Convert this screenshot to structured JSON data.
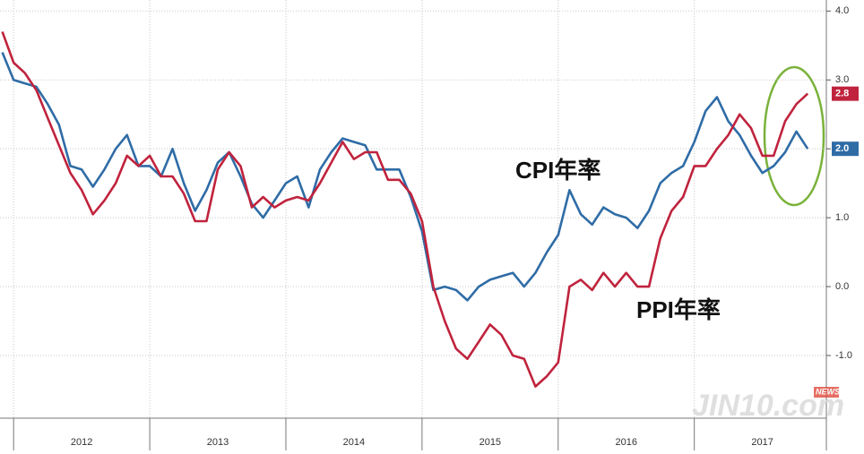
{
  "chart_data": {
    "type": "line",
    "x": [
      2011.917,
      2012.0,
      2012.083,
      2012.167,
      2012.25,
      2012.333,
      2012.417,
      2012.5,
      2012.583,
      2012.667,
      2012.75,
      2012.833,
      2012.917,
      2013.0,
      2013.083,
      2013.167,
      2013.25,
      2013.333,
      2013.417,
      2013.5,
      2013.583,
      2013.667,
      2013.75,
      2013.833,
      2013.917,
      2014.0,
      2014.083,
      2014.167,
      2014.25,
      2014.333,
      2014.417,
      2014.5,
      2014.583,
      2014.667,
      2014.75,
      2014.833,
      2014.917,
      2015.0,
      2015.083,
      2015.167,
      2015.25,
      2015.333,
      2015.417,
      2015.5,
      2015.583,
      2015.667,
      2015.75,
      2015.833,
      2015.917,
      2016.0,
      2016.083,
      2016.167,
      2016.25,
      2016.333,
      2016.417,
      2016.5,
      2016.583,
      2016.667,
      2016.75,
      2016.833,
      2016.917,
      2017.0,
      2017.083,
      2017.167,
      2017.25,
      2017.333,
      2017.417,
      2017.5,
      2017.583,
      2017.667,
      2017.75,
      2017.833
    ],
    "series": [
      {
        "name": "CPI年率",
        "color": "#2f6ca6",
        "end_label": "2.0",
        "values": [
          3.4,
          3.0,
          2.95,
          2.9,
          2.65,
          2.35,
          1.75,
          1.7,
          1.45,
          1.7,
          2.0,
          2.2,
          1.75,
          1.75,
          1.6,
          2.0,
          1.5,
          1.1,
          1.4,
          1.8,
          1.95,
          1.6,
          1.2,
          1.0,
          1.25,
          1.5,
          1.6,
          1.15,
          1.7,
          1.95,
          2.15,
          2.1,
          2.05,
          1.7,
          1.7,
          1.7,
          1.3,
          0.8,
          -0.05,
          0.0,
          -0.05,
          -0.2,
          0.0,
          0.1,
          0.15,
          0.2,
          0.0,
          0.2,
          0.5,
          0.75,
          1.4,
          1.05,
          0.9,
          1.15,
          1.05,
          1.0,
          0.85,
          1.1,
          1.5,
          1.65,
          1.75,
          2.1,
          2.55,
          2.75,
          2.4,
          2.2,
          1.9,
          1.65,
          1.75,
          1.95,
          2.25,
          2.0
        ]
      },
      {
        "name": "PPI年率",
        "color": "#c0233d",
        "end_label": "2.8",
        "values": [
          3.7,
          3.25,
          3.1,
          2.85,
          2.45,
          2.05,
          1.65,
          1.4,
          1.05,
          1.25,
          1.5,
          1.9,
          1.75,
          1.9,
          1.6,
          1.6,
          1.35,
          0.95,
          0.95,
          1.7,
          1.95,
          1.75,
          1.15,
          1.3,
          1.15,
          1.25,
          1.3,
          1.25,
          1.5,
          1.8,
          2.1,
          1.85,
          1.95,
          1.95,
          1.55,
          1.55,
          1.35,
          0.95,
          0.0,
          -0.5,
          -0.9,
          -1.05,
          -0.8,
          -0.55,
          -0.7,
          -1.0,
          -1.05,
          -1.45,
          -1.3,
          -1.1,
          0.0,
          0.1,
          -0.05,
          0.2,
          0.0,
          0.2,
          0.0,
          0.0,
          0.7,
          1.1,
          1.3,
          1.75,
          1.75,
          2.0,
          2.2,
          2.5,
          2.3,
          1.9,
          1.9,
          2.4,
          2.65,
          2.8
        ]
      }
    ],
    "xlim": [
      2011.9,
      2017.97
    ],
    "xticks": [
      2012,
      2013,
      2014,
      2015,
      2016,
      2017
    ],
    "x_labels": [
      {
        "value": 2012.5,
        "label": "2012"
      },
      {
        "value": 2013.5,
        "label": "2013"
      },
      {
        "value": 2014.5,
        "label": "2014"
      },
      {
        "value": 2015.5,
        "label": "2015"
      },
      {
        "value": 2016.5,
        "label": "2016"
      },
      {
        "value": 2017.5,
        "label": "2017"
      }
    ],
    "ylim": [
      -1.91,
      4.16
    ],
    "yticks": [
      {
        "value": -1,
        "label": "-1.0"
      },
      {
        "value": 0,
        "label": "0.0"
      },
      {
        "value": 1,
        "label": "1.0"
      },
      {
        "value": 2,
        "label": "2.0"
      },
      {
        "value": 3,
        "label": "3.0"
      },
      {
        "value": 4,
        "label": "4.0"
      }
    ],
    "grid": true,
    "watermark": "JIN10.com",
    "watermark_badge": "NEWS"
  }
}
